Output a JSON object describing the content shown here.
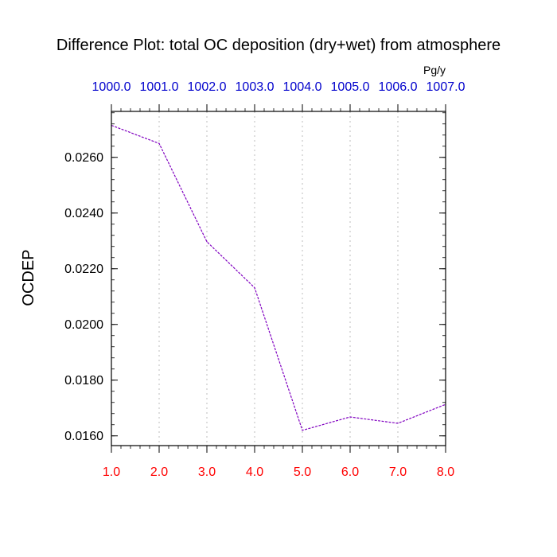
{
  "chart_data": {
    "type": "line",
    "title": "Difference Plot: total OC deposition (dry+wet) from atmosphere",
    "units": "Pg/y",
    "ylabel": "OCDEP",
    "xlabel": "",
    "x": [
      1.0,
      2.0,
      3.0,
      4.0,
      5.0,
      6.0,
      7.0,
      8.0
    ],
    "x_tick_labels": [
      "1.0",
      "2.0",
      "3.0",
      "4.0",
      "5.0",
      "6.0",
      "7.0",
      "8.0"
    ],
    "top_tick_labels": [
      "1000.0",
      "1001.0",
      "1002.0",
      "1003.0",
      "1004.0",
      "1005.0",
      "1006.0",
      "1007.0"
    ],
    "series": [
      {
        "values": [
          0.02715,
          0.0265,
          0.02297,
          0.02132,
          0.0162,
          0.01668,
          0.01645,
          0.01713
        ]
      }
    ],
    "y_ticks": [
      0.016,
      0.018,
      0.02,
      0.022,
      0.024,
      0.026
    ],
    "y_tick_labels": [
      "0.0160",
      "0.0180",
      "0.0200",
      "0.0220",
      "0.0240",
      "0.0260"
    ],
    "xlim": [
      1.0,
      8.0
    ],
    "ylim": [
      0.01565,
      0.02765
    ],
    "y_minor_step": 0.0004,
    "x_minor_per_major": 5,
    "grid": "vertical dotted",
    "colors": {
      "line": "#8000c0",
      "bottom_ticks": "#ff0000",
      "top_ticks": "#0000cc",
      "grid": "#c8c8c8",
      "axis": "#000000"
    }
  }
}
